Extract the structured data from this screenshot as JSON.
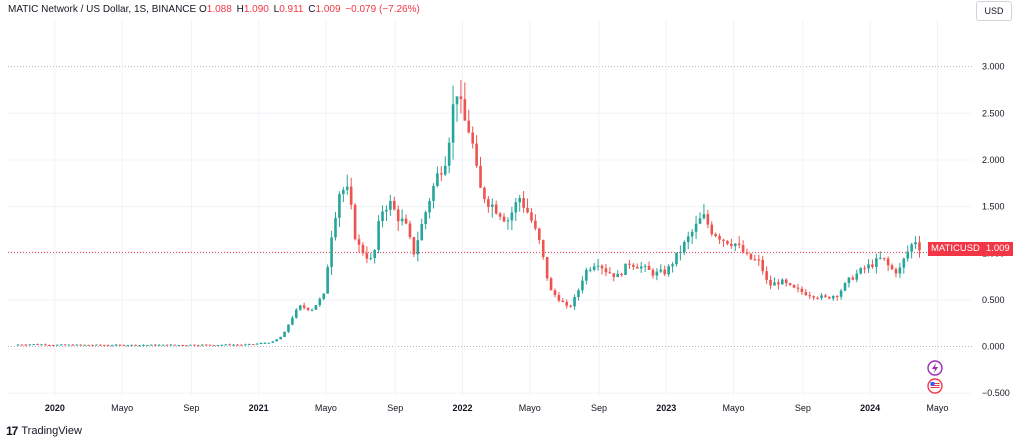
{
  "header": {
    "symbol": "MATIC Network / US Dollar, 1S, BINANCE",
    "o_label": "O",
    "o_value": "1.088",
    "h_label": "H",
    "h_value": "1.090",
    "l_label": "L",
    "l_value": "0.911",
    "c_label": "C",
    "c_value": "1.009",
    "change": "−0.079 (−7.26%)"
  },
  "currency_button": "USD",
  "price_tag": {
    "ticker": "MATICUSD",
    "value": "1.009"
  },
  "branding": {
    "logo_mark": "17",
    "name": "TradingView"
  },
  "icons": {
    "lightning": "lightning-icon",
    "flag": "us-flag-icon"
  },
  "colors": {
    "up": "#26a69a",
    "down": "#ef5350",
    "tag": "#f23645",
    "grid": "#f0f3fa"
  },
  "chart_data": {
    "type": "candlestick",
    "interval": "1 week",
    "y_ticks": [
      "3.000",
      "2.500",
      "2.000",
      "1.500",
      "1.000",
      "0.500",
      "0.000",
      "−0.500"
    ],
    "y_values": [
      3.0,
      2.5,
      2.0,
      1.5,
      1.0,
      0.5,
      0.0,
      -0.5
    ],
    "ylim": [
      -0.53,
      3.5
    ],
    "x_ticks": [
      {
        "label": "2020",
        "t": 2020.0,
        "bold": true
      },
      {
        "label": "Mayo",
        "t": 2020.33,
        "bold": false
      },
      {
        "label": "Sep",
        "t": 2020.67,
        "bold": false
      },
      {
        "label": "2021",
        "t": 2021.0,
        "bold": true
      },
      {
        "label": "Mayo",
        "t": 2021.33,
        "bold": false
      },
      {
        "label": "Sep",
        "t": 2021.67,
        "bold": false
      },
      {
        "label": "2022",
        "t": 2022.0,
        "bold": true
      },
      {
        "label": "Mayo",
        "t": 2022.33,
        "bold": false
      },
      {
        "label": "Sep",
        "t": 2022.67,
        "bold": false
      },
      {
        "label": "2023",
        "t": 2023.0,
        "bold": true
      },
      {
        "label": "Mayo",
        "t": 2023.33,
        "bold": false
      },
      {
        "label": "Sep",
        "t": 2023.67,
        "bold": false
      },
      {
        "label": "2024",
        "t": 2024.0,
        "bold": true
      },
      {
        "label": "Mayo",
        "t": 2024.33,
        "bold": false
      }
    ],
    "xlim": [
      2019.77,
      2024.5
    ],
    "last_price": 1.009,
    "price_path": [
      [
        2019.8,
        0.02
      ],
      [
        2019.9,
        0.025
      ],
      [
        2020.0,
        0.018
      ],
      [
        2020.3,
        0.015
      ],
      [
        2020.7,
        0.018
      ],
      [
        2020.95,
        0.02
      ],
      [
        2021.07,
        0.05
      ],
      [
        2021.12,
        0.12
      ],
      [
        2021.16,
        0.3
      ],
      [
        2021.2,
        0.43
      ],
      [
        2021.26,
        0.4
      ],
      [
        2021.32,
        0.55
      ],
      [
        2021.36,
        1.25
      ],
      [
        2021.4,
        1.7
      ],
      [
        2021.44,
        1.65
      ],
      [
        2021.48,
        1.1
      ],
      [
        2021.52,
        1.0
      ],
      [
        2021.56,
        0.9
      ],
      [
        2021.6,
        1.45
      ],
      [
        2021.64,
        1.55
      ],
      [
        2021.68,
        1.4
      ],
      [
        2021.72,
        1.3
      ],
      [
        2021.76,
        1.0
      ],
      [
        2021.8,
        1.3
      ],
      [
        2021.84,
        1.6
      ],
      [
        2021.88,
        1.85
      ],
      [
        2021.92,
        2.05
      ],
      [
        2021.97,
        2.8
      ],
      [
        2022.0,
        2.45
      ],
      [
        2022.04,
        2.3
      ],
      [
        2022.08,
        1.7
      ],
      [
        2022.13,
        1.55
      ],
      [
        2022.18,
        1.45
      ],
      [
        2022.22,
        1.35
      ],
      [
        2022.28,
        1.6
      ],
      [
        2022.33,
        1.4
      ],
      [
        2022.38,
        1.1
      ],
      [
        2022.43,
        0.6
      ],
      [
        2022.48,
        0.5
      ],
      [
        2022.52,
        0.4
      ],
      [
        2022.56,
        0.55
      ],
      [
        2022.6,
        0.8
      ],
      [
        2022.66,
        0.92
      ],
      [
        2022.7,
        0.82
      ],
      [
        2022.76,
        0.75
      ],
      [
        2022.82,
        0.9
      ],
      [
        2022.88,
        0.85
      ],
      [
        2022.94,
        0.78
      ],
      [
        2023.0,
        0.8
      ],
      [
        2023.06,
        1.0
      ],
      [
        2023.12,
        1.2
      ],
      [
        2023.18,
        1.4
      ],
      [
        2023.22,
        1.25
      ],
      [
        2023.28,
        1.15
      ],
      [
        2023.34,
        1.1
      ],
      [
        2023.4,
        0.95
      ],
      [
        2023.46,
        0.9
      ],
      [
        2023.5,
        0.65
      ],
      [
        2023.56,
        0.7
      ],
      [
        2023.62,
        0.62
      ],
      [
        2023.7,
        0.56
      ],
      [
        2023.78,
        0.52
      ],
      [
        2023.84,
        0.56
      ],
      [
        2023.9,
        0.72
      ],
      [
        2023.96,
        0.82
      ],
      [
        2024.0,
        0.87
      ],
      [
        2024.06,
        0.95
      ],
      [
        2024.1,
        0.83
      ],
      [
        2024.14,
        0.8
      ],
      [
        2024.18,
        1.0
      ],
      [
        2024.22,
        1.15
      ],
      [
        2024.26,
        1.009
      ]
    ]
  }
}
